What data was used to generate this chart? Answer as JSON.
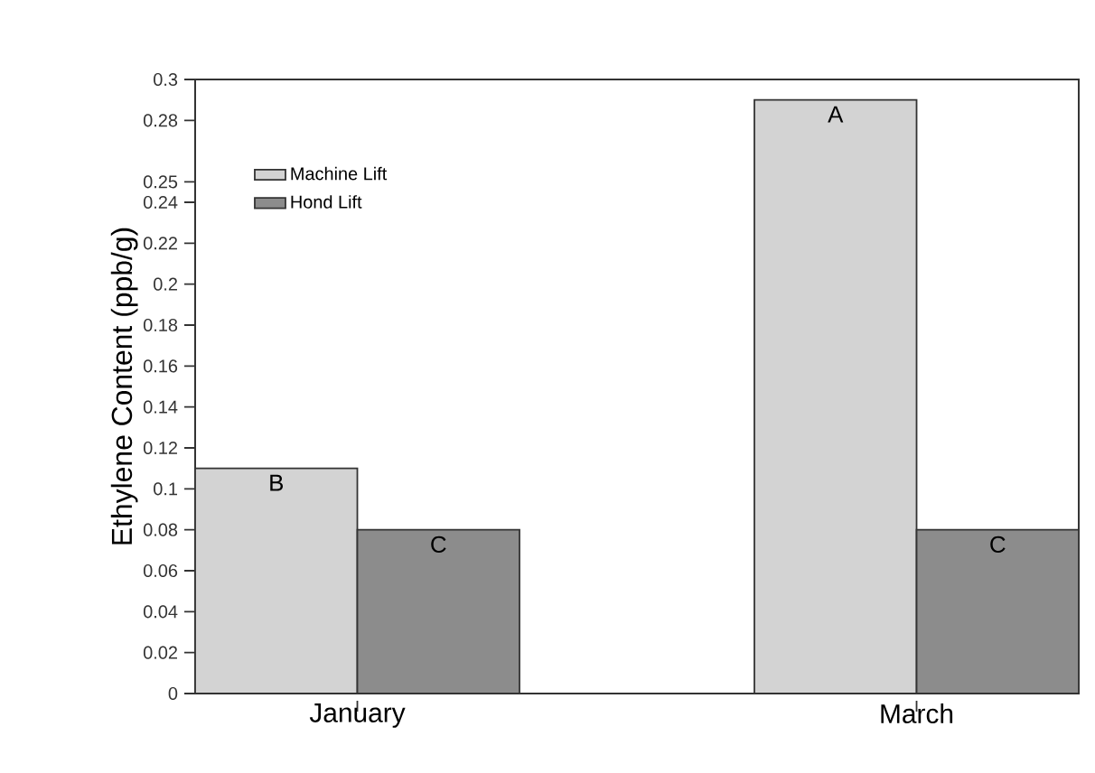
{
  "chart_data": {
    "type": "bar",
    "ylabel": "Ethylene Content (ppb/g)",
    "categories": [
      "January",
      "March"
    ],
    "series": [
      {
        "name": "Machine Lift",
        "color": "#d3d3d3",
        "values": [
          0.11,
          0.29
        ],
        "value_labels": [
          "B",
          "A"
        ]
      },
      {
        "name": "Hond Lift",
        "color": "#8c8c8c",
        "values": [
          0.08,
          0.08
        ],
        "value_labels": [
          "C",
          "C"
        ]
      }
    ],
    "ylim": [
      0,
      0.3
    ],
    "yticks": [
      0,
      0.02,
      0.04,
      0.06,
      0.08,
      0.1,
      0.12,
      0.14,
      0.16,
      0.18,
      0.2,
      0.22,
      0.24,
      0.25,
      0.28,
      0.3
    ],
    "legend": "top left",
    "grid": false
  }
}
